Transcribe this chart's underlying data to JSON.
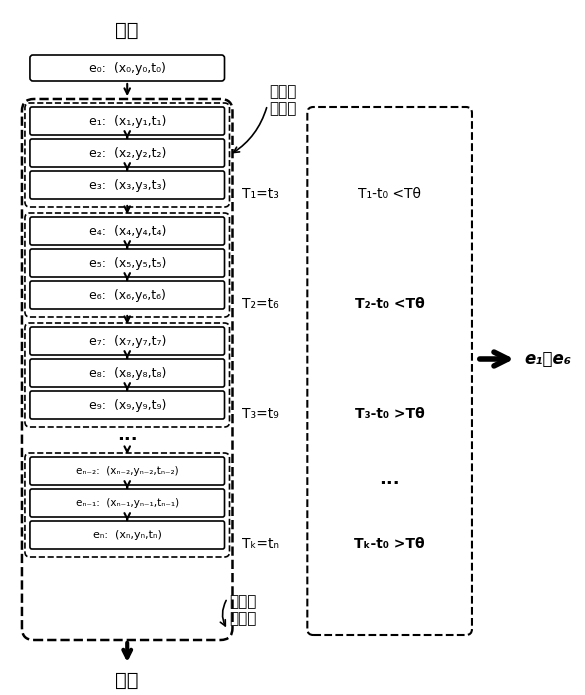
{
  "title": "移入",
  "bottom_label": "移出",
  "label_storage": "第一存\n储空间",
  "label_cluster": "时域聚\n类结果",
  "label_output": "e₁～e₆",
  "e0_label": "e₀:  (x₀,y₀,t₀)",
  "event_boxes_group1": [
    "e₁:  (x₁,y₁,t₁)",
    "e₂:  (x₂,y₂,t₂)",
    "e₃:  (x₃,y₃,t₃)"
  ],
  "event_boxes_group2": [
    "e₄:  (x₄,y₄,t₄)",
    "e₅:  (x₅,y₅,t₅)",
    "e₆:  (x₆,y₆,t₆)"
  ],
  "event_boxes_group3": [
    "e₇:  (x₇,y₇,t₇)",
    "e₈:  (x₈,y₈,t₈)",
    "e₉:  (x₉,y₉,t₉)"
  ],
  "event_boxes_group4": [
    "eₙ₋₂:  (xₙ₋₂,yₙ₋₂,tₙ₋₂)",
    "eₙ₋₁:  (xₙ₋₁,yₙ₋₁,tₙ₋₁)",
    "eₙ:  (xₙ,yₙ,tₙ)"
  ],
  "T_labels_left": [
    "T₁=t₃",
    "T₂=t₆",
    "T₃=t₉",
    "Tₖ=tₙ"
  ],
  "T_labels_right": [
    "T₁-t₀ <Tθ",
    "T₂-t₀ <Tθ",
    "T₃-t₀ >Tθ",
    "Tₖ-t₀ >Tθ"
  ],
  "T_labels_right_bold": [
    false,
    true,
    true,
    true
  ],
  "dots": "...",
  "bg_color": "#ffffff",
  "box_color": "#000000",
  "arrow_color": "#000000"
}
